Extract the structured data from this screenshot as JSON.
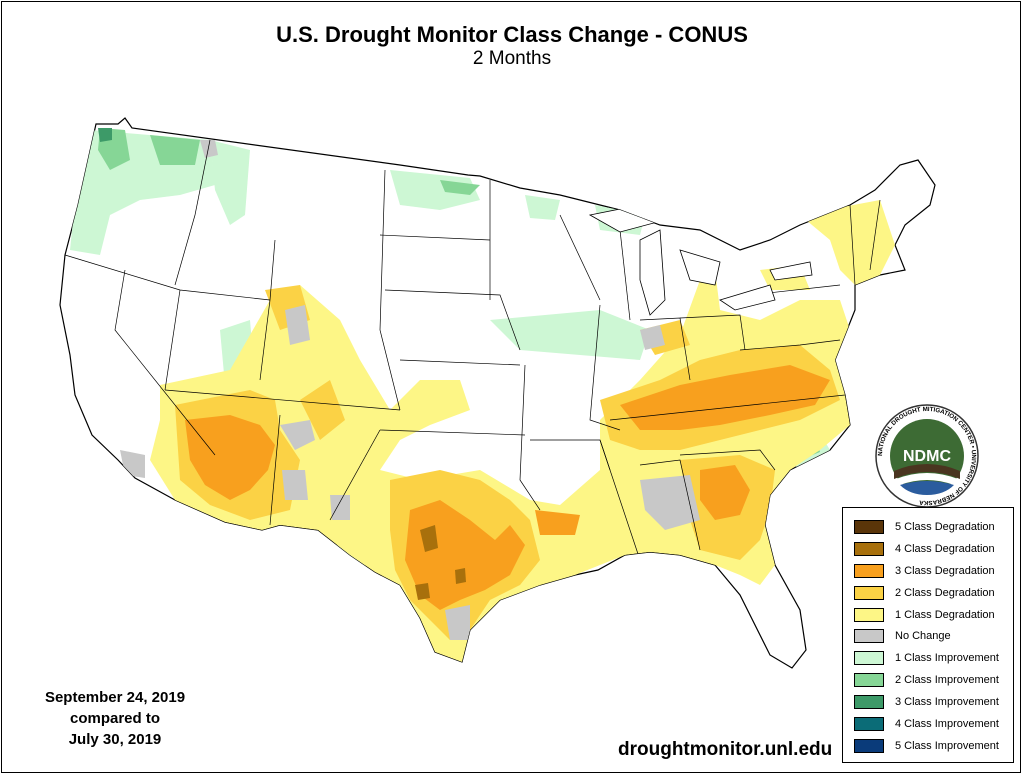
{
  "header": {
    "title": "U.S. Drought Monitor Class Change - CONUS",
    "subtitle": "2 Months"
  },
  "dates": {
    "line1": "September 24, 2019",
    "line2": "compared to",
    "line3": "July 30, 2019"
  },
  "source_url": "droughtmonitor.unl.edu",
  "logo": {
    "text": "NDMC",
    "ring_text": "NATIONAL DROUGHT MITIGATION CENTER • UNIVERSITY OF NEBRASKA"
  },
  "legend": {
    "items": [
      {
        "label": "5 Class Degradation",
        "color": "#5a3509"
      },
      {
        "label": "4 Class Degradation",
        "color": "#a8700c"
      },
      {
        "label": "3 Class Degradation",
        "color": "#f8a01e"
      },
      {
        "label": "2 Class Degradation",
        "color": "#fbd245"
      },
      {
        "label": "1 Class Degradation",
        "color": "#fdf686"
      },
      {
        "label": "No Change",
        "color": "#c8c8c8"
      },
      {
        "label": "1 Class Improvement",
        "color": "#cdf7d4"
      },
      {
        "label": "2 Class Improvement",
        "color": "#86d696"
      },
      {
        "label": "3 Class Improvement",
        "color": "#3d9a68"
      },
      {
        "label": "4 Class Improvement",
        "color": "#0b6c77"
      },
      {
        "label": "5 Class Improvement",
        "color": "#0a3b7a"
      }
    ]
  }
}
